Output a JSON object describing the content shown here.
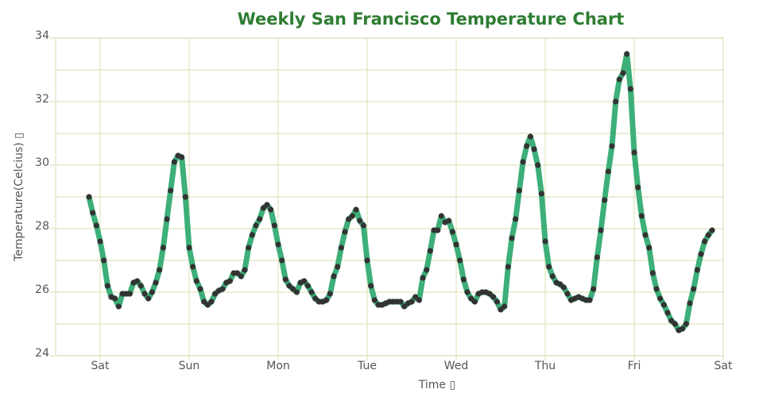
{
  "chart_data": {
    "type": "line",
    "title": "Weekly San Francisco Temperature Chart",
    "x_label": "Time ▯",
    "y_label": "Temperature(Celcius) ▯",
    "x": [
      -3,
      -2,
      -1,
      0,
      1,
      2,
      3,
      4,
      5,
      6,
      7,
      8,
      9,
      10,
      11,
      12,
      13,
      14,
      15,
      16,
      17,
      18,
      19,
      20,
      21,
      22,
      23,
      24,
      25,
      26,
      27,
      28,
      29,
      30,
      31,
      32,
      33,
      34,
      35,
      36,
      37,
      38,
      39,
      40,
      41,
      42,
      43,
      44,
      45,
      46,
      47,
      48,
      49,
      50,
      51,
      52,
      53,
      54,
      55,
      56,
      57,
      58,
      59,
      60,
      61,
      62,
      63,
      64,
      65,
      66,
      67,
      68,
      69,
      70,
      71,
      72,
      73,
      74,
      75,
      76,
      77,
      78,
      79,
      80,
      81,
      82,
      83,
      84,
      85,
      86,
      87,
      88,
      89,
      90,
      91,
      92,
      93,
      94,
      95,
      96,
      97,
      98,
      99,
      100,
      101,
      102,
      103,
      104,
      105,
      106,
      107,
      108,
      109,
      110,
      111,
      112,
      113,
      114,
      115,
      116,
      117,
      118,
      119,
      120,
      121,
      122,
      123,
      124,
      125,
      126,
      127,
      128,
      129,
      130,
      131,
      132,
      133,
      134,
      135,
      136,
      137,
      138,
      139,
      140,
      141,
      142,
      143,
      144,
      145,
      146,
      147,
      148,
      149,
      150,
      151,
      152,
      153,
      154,
      155,
      156,
      157,
      158,
      159,
      160,
      161,
      162,
      163,
      164,
      165
    ],
    "values": [
      29.0,
      28.5,
      28.1,
      27.6,
      27.0,
      26.2,
      25.85,
      25.8,
      25.55,
      25.95,
      25.95,
      25.95,
      26.3,
      26.35,
      26.2,
      25.95,
      25.8,
      26.0,
      26.3,
      26.7,
      27.4,
      28.3,
      29.2,
      30.1,
      30.3,
      30.25,
      29.0,
      27.4,
      26.8,
      26.35,
      26.1,
      25.7,
      25.6,
      25.7,
      25.95,
      26.05,
      26.1,
      26.3,
      26.35,
      26.6,
      26.6,
      26.5,
      26.7,
      27.4,
      27.8,
      28.1,
      28.3,
      28.65,
      28.75,
      28.6,
      28.1,
      27.5,
      27.0,
      26.4,
      26.2,
      26.1,
      26.0,
      26.3,
      26.35,
      26.2,
      26.0,
      25.8,
      25.7,
      25.7,
      25.75,
      25.95,
      26.5,
      26.8,
      27.4,
      27.9,
      28.3,
      28.4,
      28.6,
      28.25,
      28.1,
      27.0,
      26.2,
      25.75,
      25.6,
      25.6,
      25.65,
      25.7,
      25.7,
      25.7,
      25.7,
      25.55,
      25.65,
      25.7,
      25.85,
      25.75,
      26.45,
      26.7,
      27.3,
      27.95,
      27.95,
      28.4,
      28.2,
      28.25,
      27.9,
      27.5,
      27.0,
      26.4,
      26.0,
      25.8,
      25.7,
      25.95,
      26.0,
      26.0,
      25.95,
      25.85,
      25.7,
      25.45,
      25.55,
      26.8,
      27.7,
      28.3,
      29.2,
      30.1,
      30.6,
      30.9,
      30.5,
      30.0,
      29.1,
      27.6,
      26.8,
      26.5,
      26.3,
      26.25,
      26.15,
      25.95,
      25.75,
      25.8,
      25.85,
      25.8,
      25.75,
      25.75,
      26.1,
      27.1,
      27.95,
      28.9,
      29.8,
      30.6,
      32.0,
      32.7,
      32.9,
      33.5,
      32.4,
      30.4,
      29.3,
      28.4,
      27.8,
      27.4,
      26.6,
      26.1,
      25.8,
      25.6,
      25.35,
      25.1,
      25.0,
      24.8,
      24.85,
      25.0,
      25.65,
      26.1,
      26.7,
      27.2,
      27.6,
      27.8,
      27.95
    ],
    "line_color": "#3daf78",
    "marker_color": "#333333",
    "xlim": [
      -12,
      168
    ],
    "xticks": [
      {
        "value": 0,
        "label": "Sat"
      },
      {
        "value": 24,
        "label": "Sun"
      },
      {
        "value": 48,
        "label": "Mon"
      },
      {
        "value": 72,
        "label": "Tue"
      },
      {
        "value": 96,
        "label": "Wed"
      },
      {
        "value": 120,
        "label": "Thu"
      },
      {
        "value": 144,
        "label": "Fri"
      },
      {
        "value": 168,
        "label": "Sat"
      }
    ],
    "ylim": [
      24,
      34
    ],
    "yticks": [
      24,
      26,
      28,
      30,
      32,
      34
    ],
    "y_minor_grid": [
      25,
      27,
      29,
      31,
      33
    ],
    "grid": true
  }
}
